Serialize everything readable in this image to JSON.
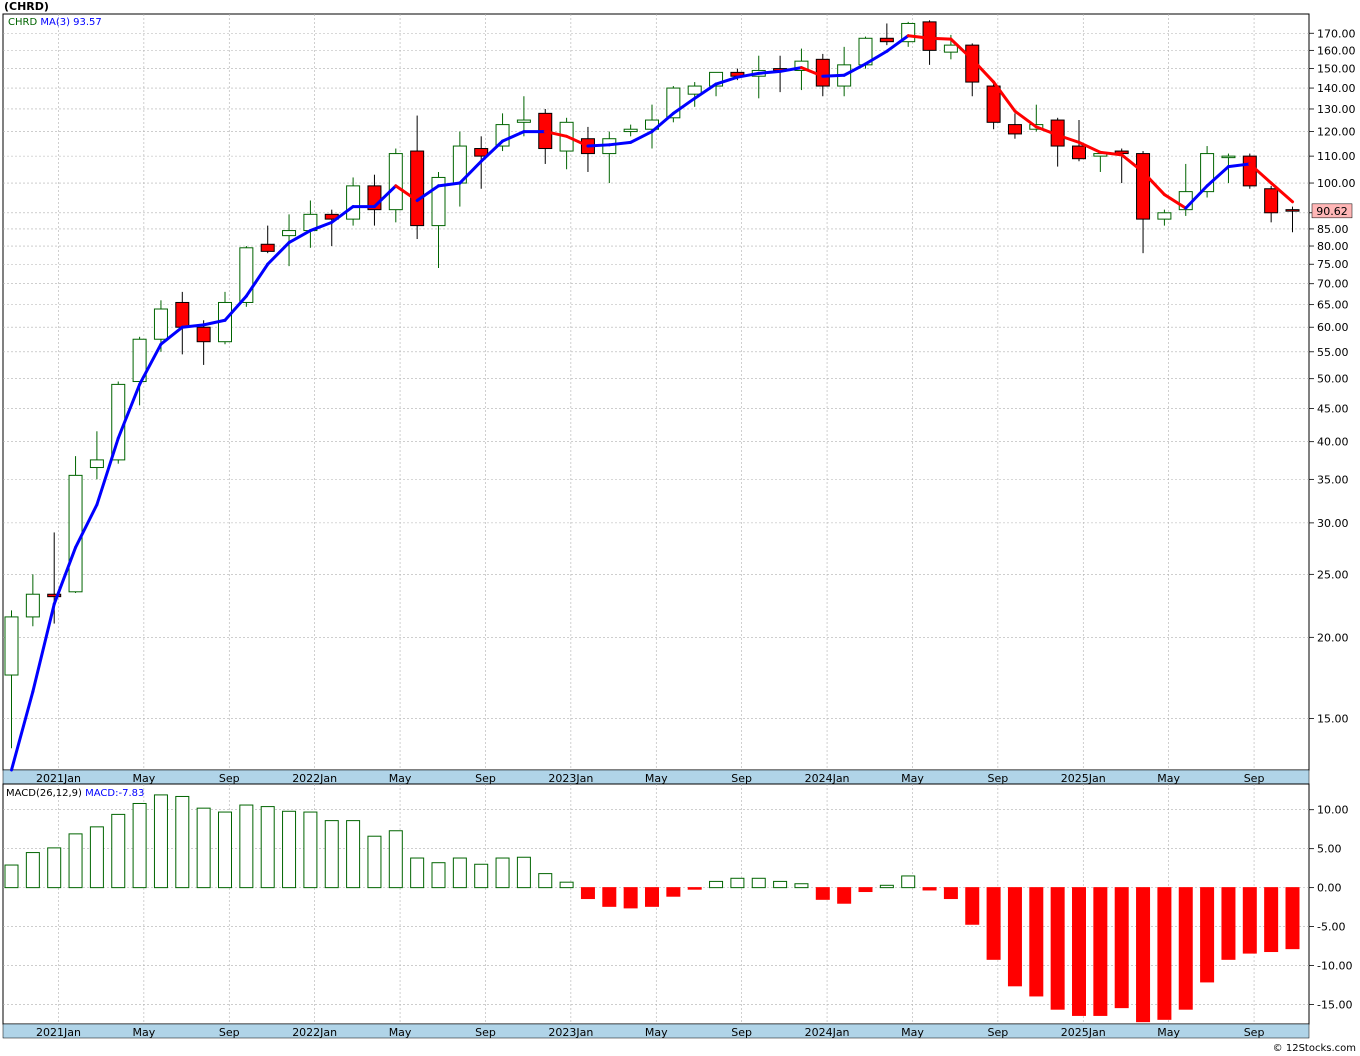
{
  "chart_title": "(CHRD)",
  "credit": "© 12Stocks.com",
  "colors": {
    "up_candle": "#006400",
    "down_candle": "#ff0000",
    "ma_up": "#0000ff",
    "ma_down": "#ff0000",
    "axis_strip": "#b0d4e8",
    "grid": "#b0b0b0",
    "price_badge": "#ffb6b6"
  },
  "chart_data": [
    {
      "type": "candlestick",
      "legend": {
        "ticker": "CHRD",
        "ma_label": "MA(3)",
        "ma_value": "93.57"
      },
      "scale": "log",
      "ylim": [
        12.5,
        182
      ],
      "y_ticks": [
        15,
        20,
        25,
        30,
        35,
        40,
        45,
        50,
        55,
        60,
        65,
        70,
        75,
        80,
        85,
        90,
        100,
        110,
        120,
        130,
        140,
        150,
        160,
        170
      ],
      "y_tick_labels": [
        "15.00",
        "20.00",
        "25.00",
        "30.00",
        "35.00",
        "40.00",
        "45.00",
        "50.00",
        "55.00",
        "60.00",
        "65.00",
        "70.00",
        "75.00",
        "80.00",
        "85.00",
        "90.00",
        "100.00",
        "110.00",
        "120.00",
        "130.00",
        "140.00",
        "150.00",
        "160.00",
        "170.00"
      ],
      "last_price_label": "90.62",
      "last_price": 90.62,
      "x_labels": [
        {
          "label": "2021Jan",
          "index": 2.2
        },
        {
          "label": "May",
          "index": 6.2
        },
        {
          "label": "Sep",
          "index": 10.2
        },
        {
          "label": "2022Jan",
          "index": 14.2
        },
        {
          "label": "May",
          "index": 18.2
        },
        {
          "label": "Sep",
          "index": 22.2
        },
        {
          "label": "2023Jan",
          "index": 26.2
        },
        {
          "label": "May",
          "index": 30.2
        },
        {
          "label": "Sep",
          "index": 34.2
        },
        {
          "label": "2024Jan",
          "index": 38.2
        },
        {
          "label": "May",
          "index": 42.2
        },
        {
          "label": "Sep",
          "index": 46.2
        },
        {
          "label": "2025Jan",
          "index": 50.2
        },
        {
          "label": "May",
          "index": 54.2
        },
        {
          "label": "Sep",
          "index": 58.2
        }
      ],
      "candles": [
        {
          "o": 17.5,
          "h": 22,
          "l": 13.5,
          "c": 21.5
        },
        {
          "o": 21.5,
          "h": 25,
          "l": 20.8,
          "c": 23.3
        },
        {
          "o": 23.3,
          "h": 29,
          "l": 21,
          "c": 23.1
        },
        {
          "o": 23.5,
          "h": 38,
          "l": 23.4,
          "c": 35.5
        },
        {
          "o": 36.5,
          "h": 41.5,
          "l": 35,
          "c": 37.5
        },
        {
          "o": 37.5,
          "h": 49.5,
          "l": 37,
          "c": 49
        },
        {
          "o": 49.5,
          "h": 58,
          "l": 45.5,
          "c": 57.5
        },
        {
          "o": 57.5,
          "h": 66,
          "l": 55,
          "c": 64
        },
        {
          "o": 65.5,
          "h": 68,
          "l": 54.5,
          "c": 60
        },
        {
          "o": 60,
          "h": 61.5,
          "l": 52.5,
          "c": 57
        },
        {
          "o": 57,
          "h": 68,
          "l": 56.5,
          "c": 65.5
        },
        {
          "o": 65.5,
          "h": 80,
          "l": 64.5,
          "c": 79.5
        },
        {
          "o": 80.5,
          "h": 86,
          "l": 78,
          "c": 78.5
        },
        {
          "o": 83,
          "h": 89.5,
          "l": 74.5,
          "c": 84.5
        },
        {
          "o": 84.5,
          "h": 94,
          "l": 79.5,
          "c": 89.5
        },
        {
          "o": 89.5,
          "h": 91,
          "l": 80,
          "c": 88
        },
        {
          "o": 88,
          "h": 102,
          "l": 86,
          "c": 99
        },
        {
          "o": 99,
          "h": 103,
          "l": 86,
          "c": 91
        },
        {
          "o": 91,
          "h": 113,
          "l": 87,
          "c": 111
        },
        {
          "o": 112,
          "h": 127,
          "l": 82,
          "c": 86
        },
        {
          "o": 86,
          "h": 104,
          "l": 74,
          "c": 102
        },
        {
          "o": 100,
          "h": 120,
          "l": 92,
          "c": 114
        },
        {
          "o": 113,
          "h": 118,
          "l": 98,
          "c": 110
        },
        {
          "o": 114,
          "h": 128,
          "l": 112,
          "c": 123
        },
        {
          "o": 124,
          "h": 136,
          "l": 118,
          "c": 125
        },
        {
          "o": 128,
          "h": 130,
          "l": 107,
          "c": 113
        },
        {
          "o": 112,
          "h": 126,
          "l": 105,
          "c": 124
        },
        {
          "o": 117,
          "h": 122,
          "l": 104,
          "c": 111
        },
        {
          "o": 111,
          "h": 120,
          "l": 100,
          "c": 117
        },
        {
          "o": 120,
          "h": 123,
          "l": 118,
          "c": 121
        },
        {
          "o": 121,
          "h": 132,
          "l": 113,
          "c": 125
        },
        {
          "o": 126,
          "h": 141,
          "l": 124,
          "c": 140
        },
        {
          "o": 137,
          "h": 143,
          "l": 131,
          "c": 141
        },
        {
          "o": 141,
          "h": 148,
          "l": 136,
          "c": 148
        },
        {
          "o": 148,
          "h": 150,
          "l": 144,
          "c": 146
        },
        {
          "o": 146,
          "h": 157,
          "l": 135,
          "c": 149
        },
        {
          "o": 150,
          "h": 157,
          "l": 138,
          "c": 149
        },
        {
          "o": 149,
          "h": 161,
          "l": 139,
          "c": 154
        },
        {
          "o": 155,
          "h": 158,
          "l": 136,
          "c": 141
        },
        {
          "o": 141,
          "h": 162,
          "l": 136,
          "c": 152
        },
        {
          "o": 152,
          "h": 168,
          "l": 150,
          "c": 167
        },
        {
          "o": 167,
          "h": 176,
          "l": 163,
          "c": 165
        },
        {
          "o": 165,
          "h": 177,
          "l": 162,
          "c": 176
        },
        {
          "o": 177,
          "h": 178,
          "l": 152,
          "c": 160
        },
        {
          "o": 159,
          "h": 169,
          "l": 155,
          "c": 163
        },
        {
          "o": 163,
          "h": 164,
          "l": 136,
          "c": 143
        },
        {
          "o": 141,
          "h": 143,
          "l": 121,
          "c": 124
        },
        {
          "o": 123,
          "h": 128,
          "l": 117,
          "c": 119
        },
        {
          "o": 121,
          "h": 132,
          "l": 120,
          "c": 123
        },
        {
          "o": 125,
          "h": 126,
          "l": 106,
          "c": 114
        },
        {
          "o": 114,
          "h": 125,
          "l": 108,
          "c": 109
        },
        {
          "o": 110,
          "h": 112,
          "l": 104,
          "c": 111
        },
        {
          "o": 112,
          "h": 113,
          "l": 100,
          "c": 111
        },
        {
          "o": 111,
          "h": 112,
          "l": 78,
          "c": 88
        },
        {
          "o": 88,
          "h": 91,
          "l": 86,
          "c": 90
        },
        {
          "o": 91,
          "h": 107,
          "l": 89,
          "c": 97
        },
        {
          "o": 97,
          "h": 114,
          "l": 95,
          "c": 111
        },
        {
          "o": 110,
          "h": 111,
          "l": 100,
          "c": 110
        },
        {
          "o": 110,
          "h": 111,
          "l": 98,
          "c": 99
        },
        {
          "o": 98,
          "h": 99,
          "l": 87,
          "c": 90
        },
        {
          "o": 91,
          "h": 92,
          "l": 84,
          "c": 90.62
        }
      ],
      "ma": [
        12.5,
        16.5,
        22.5,
        27.5,
        32,
        40.5,
        49,
        56.5,
        60,
        60.5,
        61.5,
        67,
        75,
        81,
        84.5,
        87,
        92,
        92,
        99,
        94,
        99,
        100,
        108,
        116,
        120,
        120,
        118,
        114,
        114.5,
        115.5,
        120,
        128,
        135,
        142,
        145.5,
        147.5,
        148.5,
        150.5,
        146,
        146.5,
        152.5,
        159.5,
        168.5,
        167,
        166.5,
        155,
        143,
        129,
        122,
        118.5,
        115.5,
        111.5,
        110.5,
        104,
        96,
        91.5,
        99,
        106,
        107,
        100,
        93.57
      ]
    },
    {
      "type": "bar",
      "legend": {
        "label": "MACD(26,12,9)",
        "value_label": "MACD:-7.83"
      },
      "ylim": [
        -17.5,
        13.3
      ],
      "y_ticks": [
        10,
        5,
        0,
        -5,
        -10,
        -15
      ],
      "y_tick_labels": [
        "10.00",
        "5.00",
        "0.00",
        "-5.00",
        "-10.00",
        "-15.00"
      ],
      "values": [
        2.9,
        4.5,
        5.1,
        6.9,
        7.8,
        9.4,
        10.8,
        11.9,
        11.7,
        10.2,
        9.7,
        10.6,
        10.4,
        9.8,
        9.7,
        8.6,
        8.6,
        6.6,
        7.3,
        3.8,
        3.2,
        3.8,
        3.0,
        3.8,
        3.9,
        1.8,
        0.7,
        -1.4,
        -2.4,
        -2.6,
        -2.4,
        -1.1,
        -0.2,
        0.8,
        1.2,
        1.2,
        0.8,
        0.5,
        -1.5,
        -2.0,
        -0.5,
        0.3,
        1.5,
        -0.3,
        -1.4,
        -4.7,
        -9.2,
        -12.6,
        -13.9,
        -15.6,
        -16.4,
        -16.4,
        -15.4,
        -17.2,
        -16.9,
        -15.6,
        -12.1,
        -9.2,
        -8.4,
        -8.2,
        -7.83
      ]
    }
  ]
}
